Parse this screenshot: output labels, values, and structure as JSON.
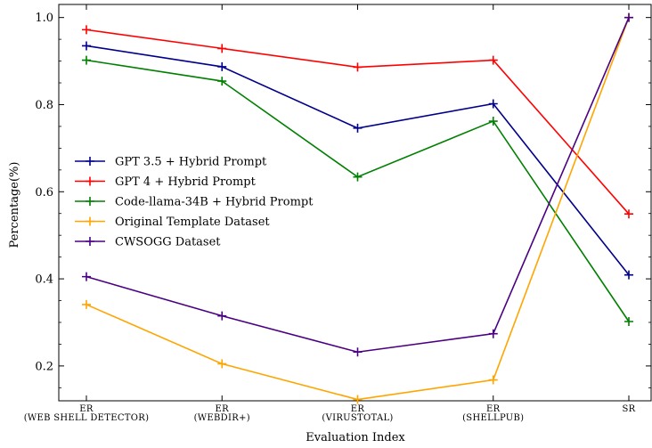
{
  "chart_data": {
    "type": "line",
    "xlabel": "Evaluation Index",
    "ylabel": "Percentage(%)",
    "categories": [
      [
        "ER",
        "(WEB SHELL DETECTOR)"
      ],
      [
        "ER",
        "(WEBDIR+)"
      ],
      [
        "ER",
        "(VIRUSTOTAL)"
      ],
      [
        "ER",
        "(SHELLPUB)"
      ],
      [
        "SR",
        ""
      ]
    ],
    "ylim": [
      0.12,
      1.03
    ],
    "yticks": [
      "0.2",
      "0.4",
      "0.6",
      "0.8",
      "1.0"
    ],
    "legend_position": "center-left",
    "series": [
      {
        "name": "GPT 3.5 + Hybrid Prompt",
        "color": "#00008b",
        "values": [
          0.935,
          0.887,
          0.746,
          0.802,
          0.409
        ]
      },
      {
        "name": "GPT 4 + Hybrid Prompt",
        "color": "#ff0000",
        "values": [
          0.972,
          0.929,
          0.886,
          0.902,
          0.549
        ]
      },
      {
        "name": "Code-llama-34B + Hybrid Prompt",
        "color": "#008000",
        "values": [
          0.902,
          0.854,
          0.634,
          0.762,
          0.302
        ]
      },
      {
        "name": "Original Template Dataset",
        "color": "#ffa500",
        "values": [
          0.341,
          0.205,
          0.123,
          0.168,
          1.0
        ]
      },
      {
        "name": "CWSOGG Dataset",
        "color": "#4b0082",
        "values": [
          0.405,
          0.315,
          0.232,
          0.274,
          1.0
        ]
      }
    ]
  }
}
